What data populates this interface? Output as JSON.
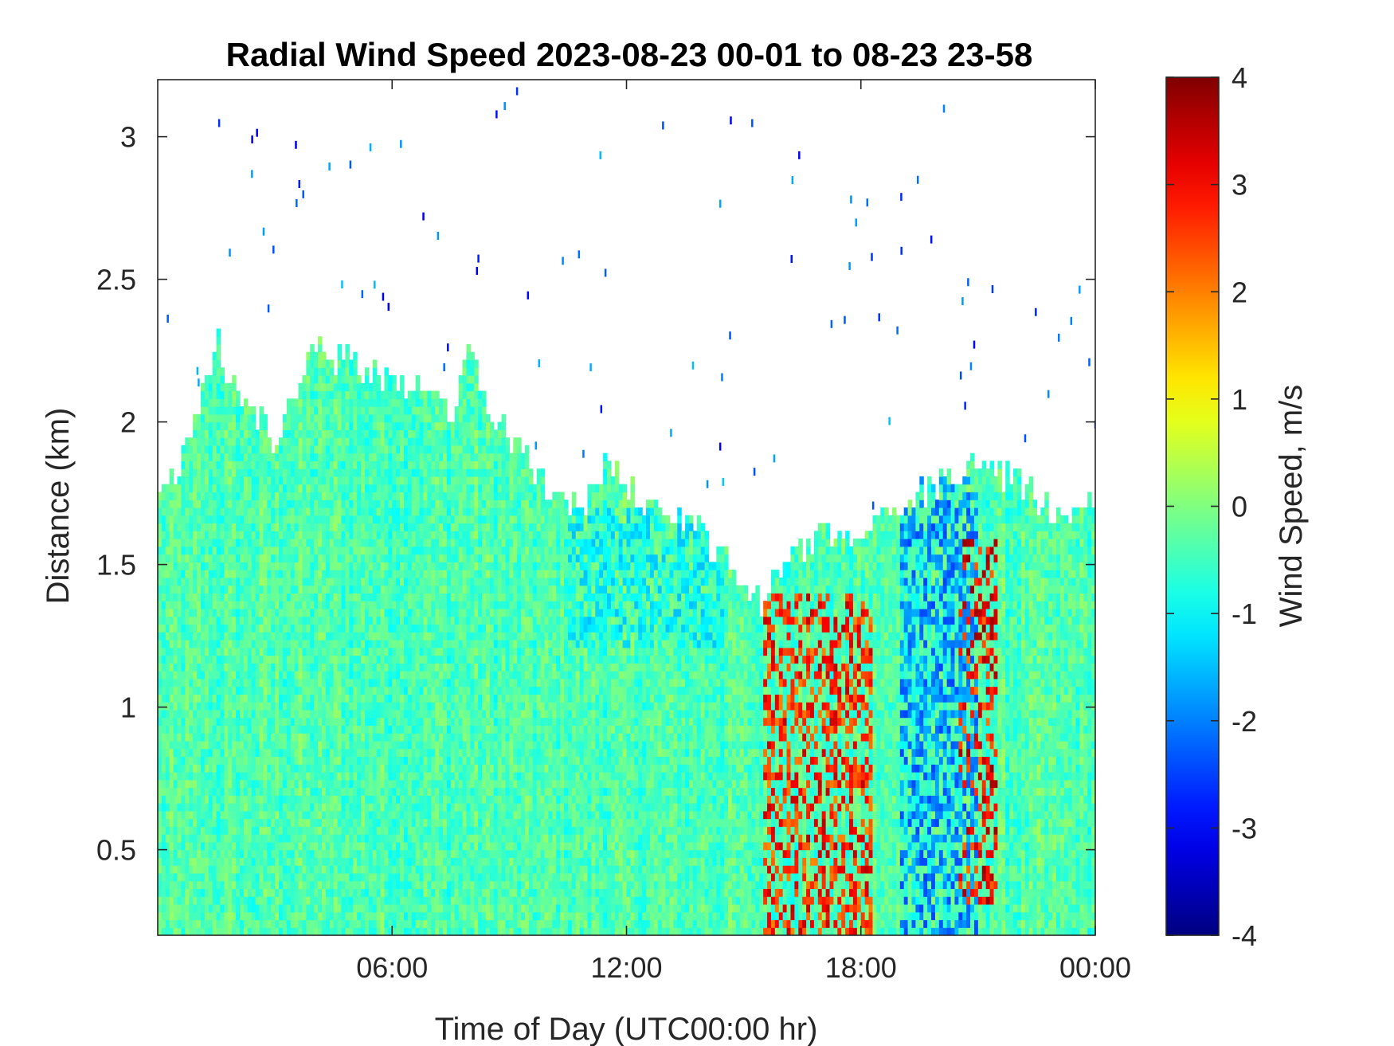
{
  "chart_data": {
    "type": "heatmap",
    "title": "Radial Wind Speed 2023-08-23 00-01 to 08-23 23-58",
    "xlabel": "Time of Day (UTC00:00 hr)",
    "ylabel": "Distance (km)",
    "x_range_hours": [
      0,
      24
    ],
    "ylim": [
      0.2,
      3.2
    ],
    "x_ticks": [
      {
        "hour": 6,
        "label": "06:00"
      },
      {
        "hour": 12,
        "label": "12:00"
      },
      {
        "hour": 18,
        "label": "18:00"
      },
      {
        "hour": 24,
        "label": "00:00"
      }
    ],
    "y_ticks": [
      {
        "value": 0.5,
        "label": "0.5"
      },
      {
        "value": 1,
        "label": "1"
      },
      {
        "value": 1.5,
        "label": "1.5"
      },
      {
        "value": 2,
        "label": "2"
      },
      {
        "value": 2.5,
        "label": "2.5"
      },
      {
        "value": 3,
        "label": "3"
      }
    ],
    "colorbar": {
      "label": "Wind Speed, m/s",
      "colormap": "jet",
      "range": [
        -4,
        4
      ],
      "ticks": [
        {
          "value": 4,
          "label": "4"
        },
        {
          "value": 3,
          "label": "3"
        },
        {
          "value": 2,
          "label": "2"
        },
        {
          "value": 1,
          "label": "1"
        },
        {
          "value": 0,
          "label": "0"
        },
        {
          "value": -1,
          "label": "-1"
        },
        {
          "value": -2,
          "label": "-2"
        },
        {
          "value": -3,
          "label": "-3"
        },
        {
          "value": -4,
          "label": "-4"
        }
      ]
    },
    "data_top_km_by_hour": [
      [
        0,
        1.78
      ],
      [
        0.6,
        1.85
      ],
      [
        1,
        2.0
      ],
      [
        1.5,
        2.3
      ],
      [
        2,
        2.1
      ],
      [
        3,
        1.95
      ],
      [
        3.5,
        2.1
      ],
      [
        4,
        2.25
      ],
      [
        5,
        2.2
      ],
      [
        6,
        2.15
      ],
      [
        7,
        2.1
      ],
      [
        7.5,
        2.0
      ],
      [
        8,
        2.25
      ],
      [
        8.5,
        2.0
      ],
      [
        9,
        1.95
      ],
      [
        10,
        1.78
      ],
      [
        11,
        1.7
      ],
      [
        11.5,
        1.9
      ],
      [
        12,
        1.75
      ],
      [
        13,
        1.7
      ],
      [
        14,
        1.6
      ],
      [
        15,
        1.45
      ],
      [
        15.5,
        1.35
      ],
      [
        16,
        1.5
      ],
      [
        17,
        1.6
      ],
      [
        18,
        1.6
      ],
      [
        19,
        1.7
      ],
      [
        20,
        1.78
      ],
      [
        21,
        1.85
      ],
      [
        22,
        1.8
      ],
      [
        23,
        1.68
      ],
      [
        24,
        1.7
      ]
    ],
    "notable_features": [
      {
        "hours": [
          15.5,
          18.3
        ],
        "km": [
          0.2,
          1.4
        ],
        "wind_m_s": 3.5
      },
      {
        "hours": [
          20.5,
          21.5
        ],
        "km": [
          0.3,
          1.6
        ],
        "wind_m_s": 3.8
      },
      {
        "hours": [
          19,
          21
        ],
        "km": [
          0.2,
          1.8
        ],
        "wind_m_s": -2.5
      },
      {
        "hours": [
          10.5,
          14.5
        ],
        "km": [
          1.2,
          1.7
        ],
        "wind_m_s": -1.5
      }
    ],
    "background_wind_m_s": -0.4
  }
}
